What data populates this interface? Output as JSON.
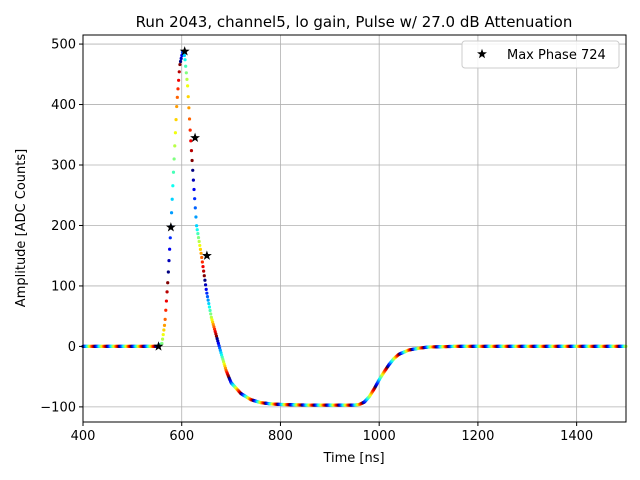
{
  "chart_data": {
    "type": "scatter",
    "title": "Run 2043, channel5, lo gain, Pulse w/ 27.0 dB Attenuation",
    "xlabel": "Time [ns]",
    "ylabel": "Amplitude [ADC Counts]",
    "xlim": [
      400,
      1500
    ],
    "ylim": [
      -125,
      515
    ],
    "xticks": [
      400,
      600,
      800,
      1000,
      1200,
      1400
    ],
    "yticks": [
      -100,
      0,
      100,
      200,
      300,
      400,
      500
    ],
    "xtick_labels": [
      "400",
      "600",
      "800",
      "1000",
      "1200",
      "1400"
    ],
    "ytick_labels": [
      "−100",
      "0",
      "100",
      "200",
      "300",
      "400",
      "500"
    ],
    "grid": true,
    "colormap": "jet",
    "pulse_shape": {
      "x": [
        400,
        540,
        552,
        560,
        566,
        572,
        578,
        584,
        590,
        596,
        602,
        606,
        612,
        618,
        624,
        630,
        640,
        650,
        660,
        670,
        680,
        690,
        700,
        720,
        740,
        760,
        780,
        800,
        850,
        900,
        950,
        960,
        970,
        980,
        990,
        1000,
        1010,
        1020,
        1030,
        1040,
        1060,
        1080,
        1100,
        1150,
        1200,
        1300,
        1400,
        1500
      ],
      "y": [
        0,
        0,
        0,
        5,
        40,
        110,
        197,
        300,
        400,
        465,
        488,
        480,
        430,
        345,
        270,
        200,
        150,
        92,
        48,
        18,
        -12,
        -40,
        -60,
        -78,
        -88,
        -93,
        -95,
        -96,
        -97,
        -97,
        -97,
        -96,
        -92,
        -83,
        -70,
        -55,
        -42,
        -30,
        -20,
        -13,
        -6,
        -3,
        -1,
        0,
        0,
        0,
        0,
        0
      ]
    },
    "series": [
      {
        "name": "Max Phase 724",
        "marker": "star",
        "x": [
          553,
          578,
          606,
          627,
          651
        ],
        "y": [
          0,
          197,
          488,
          345,
          150
        ]
      }
    ],
    "legend": {
      "position": "top-right",
      "label": "Max Phase 724"
    }
  }
}
